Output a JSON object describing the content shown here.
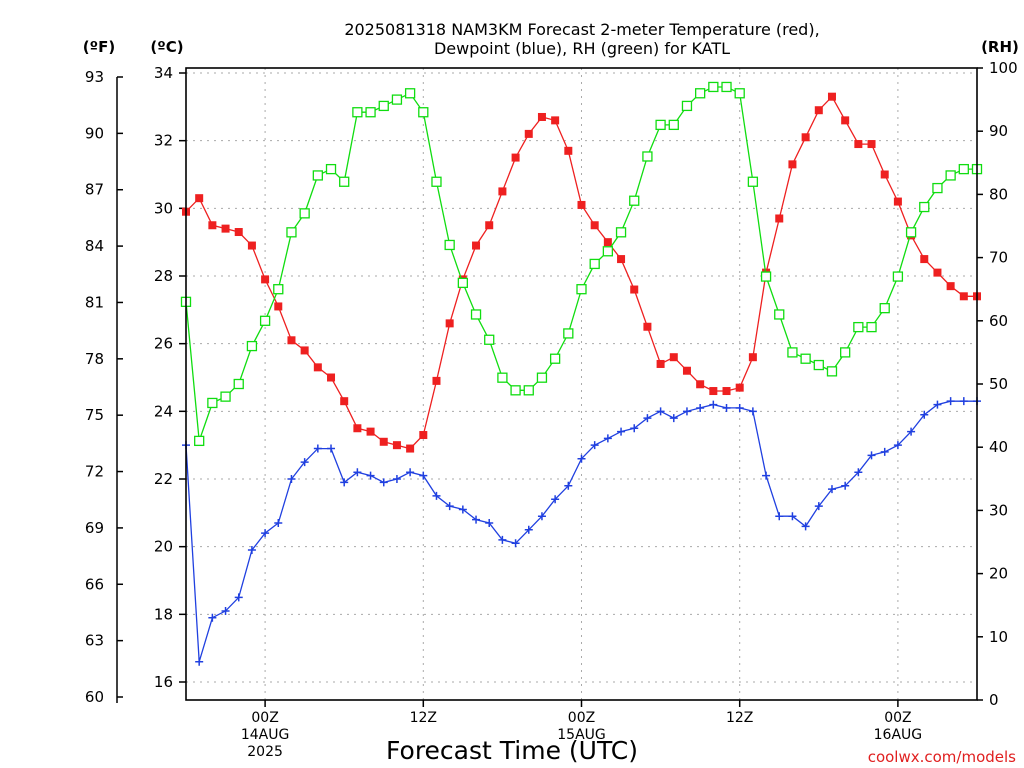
{
  "title_lines": [
    "2025081318 NAM3KM Forecast 2-meter Temperature (red),",
    "Dewpoint (blue), RH (green) for KATL"
  ],
  "units": {
    "fahrenheit": "(ºF)",
    "celsius": "(ºC)",
    "rh": "(RH)"
  },
  "credit": "coolwx.com/models",
  "chart_data": {
    "type": "line",
    "title": "2025081318 NAM3KM Forecast 2-meter Temperature (red), Dewpoint (blue), RH (green) for KATL",
    "xlabel": "Forecast Time (UTC)",
    "x_unit": "forecast hour from 2025-08-13 18Z",
    "x_range": [
      0,
      60
    ],
    "x_ticks": [
      {
        "hour": 6,
        "labels": [
          "00Z",
          "14AUG",
          "2025"
        ]
      },
      {
        "hour": 18,
        "labels": [
          "12Z"
        ]
      },
      {
        "hour": 30,
        "labels": [
          "00Z",
          "15AUG"
        ]
      },
      {
        "hour": 42,
        "labels": [
          "12Z"
        ]
      },
      {
        "hour": 54,
        "labels": [
          "00Z",
          "16AUG"
        ]
      }
    ],
    "y_left_celsius": {
      "range": [
        15.2,
        34
      ],
      "ticks": [
        "34",
        "32",
        "30",
        "28",
        "26",
        "24",
        "22",
        "20",
        "18",
        "16"
      ]
    },
    "y_left_fahrenheit": {
      "range": [
        60,
        93
      ],
      "ticks": [
        "93",
        "90",
        "87",
        "84",
        "81",
        "78",
        "75",
        "72",
        "69",
        "66",
        "63",
        "60"
      ]
    },
    "y_right_rh": {
      "range": [
        0,
        100
      ],
      "ticks": [
        "100",
        "90",
        "80",
        "70",
        "60",
        "50",
        "40",
        "30",
        "20",
        "10",
        "0"
      ]
    },
    "grid": true,
    "series": [
      {
        "name": "Temperature (red)",
        "axis": "celsius",
        "color": "#ee2020",
        "marker": "filled-square",
        "x": [
          0,
          1,
          2,
          3,
          4,
          5,
          6,
          7,
          8,
          9,
          10,
          11,
          12,
          13,
          14,
          15,
          16,
          17,
          18,
          19,
          20,
          21,
          22,
          23,
          24,
          25,
          26,
          27,
          28,
          29,
          30,
          31,
          32,
          33,
          34,
          35,
          36,
          37,
          38,
          39,
          40,
          41,
          42,
          43,
          44,
          45,
          46,
          47,
          48,
          49,
          50,
          51,
          52,
          53,
          54,
          55,
          56,
          57,
          58,
          59,
          60
        ],
        "values": [
          29.9,
          30.3,
          29.5,
          29.4,
          29.3,
          28.9,
          27.9,
          27.1,
          26.1,
          25.8,
          25.3,
          25.0,
          24.3,
          23.5,
          23.4,
          23.1,
          23.0,
          22.9,
          23.3,
          24.9,
          26.6,
          27.9,
          28.9,
          29.5,
          30.5,
          31.5,
          32.2,
          32.7,
          32.6,
          31.7,
          30.1,
          29.5,
          29.0,
          28.5,
          27.6,
          26.5,
          25.4,
          25.6,
          25.2,
          24.8,
          24.6,
          24.6,
          24.7,
          25.6,
          28.1,
          29.7,
          31.3,
          32.1,
          32.9,
          33.3,
          32.6,
          31.9,
          31.9,
          31.0,
          30.2,
          29.2,
          28.5,
          28.1,
          27.7,
          27.4,
          27.4
        ]
      },
      {
        "name": "Dewpoint (blue)",
        "axis": "celsius",
        "color": "#2040e0",
        "marker": "plus",
        "x": [
          0,
          1,
          2,
          3,
          4,
          5,
          6,
          7,
          8,
          9,
          10,
          11,
          12,
          13,
          14,
          15,
          16,
          17,
          18,
          19,
          20,
          21,
          22,
          23,
          24,
          25,
          26,
          27,
          28,
          29,
          30,
          31,
          32,
          33,
          34,
          35,
          36,
          37,
          38,
          39,
          40,
          41,
          42,
          43,
          44,
          45,
          46,
          47,
          48,
          49,
          50,
          51,
          52,
          53,
          54,
          55,
          56,
          57,
          58,
          59,
          60
        ],
        "values": [
          23.0,
          16.6,
          17.9,
          18.1,
          18.5,
          19.9,
          20.4,
          20.7,
          22.0,
          22.5,
          22.9,
          22.9,
          21.9,
          22.2,
          22.1,
          21.9,
          22.0,
          22.2,
          22.1,
          21.5,
          21.2,
          21.1,
          20.8,
          20.7,
          20.2,
          20.1,
          20.5,
          20.9,
          21.4,
          21.8,
          22.6,
          23.0,
          23.2,
          23.4,
          23.5,
          23.8,
          24.0,
          23.8,
          24.0,
          24.1,
          24.2,
          24.1,
          24.1,
          24.0,
          22.1,
          20.9,
          20.9,
          20.6,
          21.2,
          21.7,
          21.8,
          22.2,
          22.7,
          22.8,
          23.0,
          23.4,
          23.9,
          24.2,
          24.3,
          24.3,
          24.3
        ]
      },
      {
        "name": "RH (green)",
        "axis": "rh",
        "color": "#10dd10",
        "marker": "open-square",
        "x": [
          0,
          1,
          2,
          3,
          4,
          5,
          6,
          7,
          8,
          9,
          10,
          11,
          12,
          13,
          14,
          15,
          16,
          17,
          18,
          19,
          20,
          21,
          22,
          23,
          24,
          25,
          26,
          27,
          28,
          29,
          30,
          31,
          32,
          33,
          34,
          35,
          36,
          37,
          38,
          39,
          40,
          41,
          42,
          43,
          44,
          45,
          46,
          47,
          48,
          49,
          50,
          51,
          52,
          53,
          54,
          55,
          56,
          57,
          58,
          59,
          60
        ],
        "values": [
          63,
          41,
          47,
          48,
          50,
          56,
          60,
          65,
          74,
          77,
          83,
          84,
          82,
          93,
          93,
          94,
          95,
          96,
          93,
          82,
          72,
          66,
          61,
          57,
          51,
          49,
          49,
          51,
          54,
          58,
          65,
          69,
          71,
          74,
          79,
          86,
          91,
          91,
          94,
          96,
          97,
          97,
          96,
          82,
          67,
          61,
          55,
          54,
          53,
          52,
          55,
          59,
          59,
          62,
          67,
          74,
          78,
          81,
          83,
          84,
          84
        ]
      }
    ]
  }
}
